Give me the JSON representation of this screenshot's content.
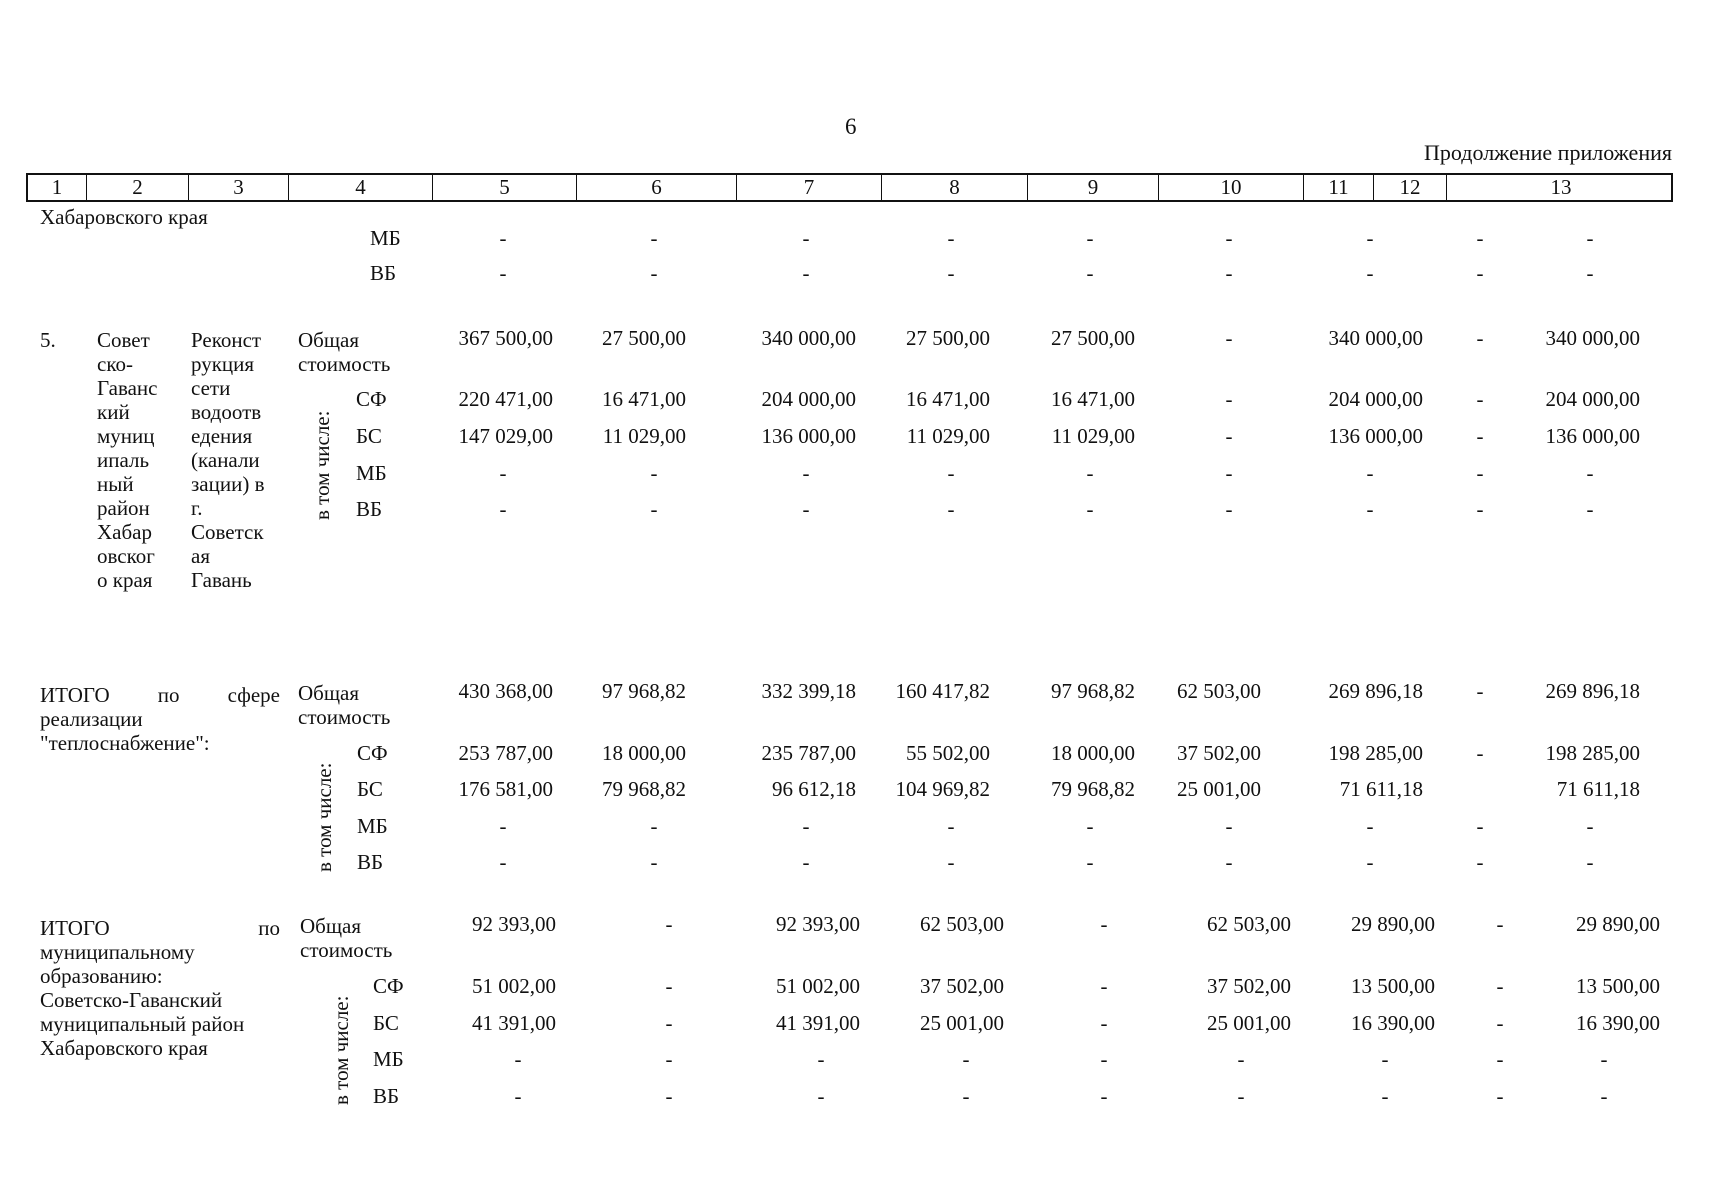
{
  "page_number": "6",
  "continuation": "Продолжение приложения",
  "header_columns": [
    "1",
    "2",
    "3",
    "4",
    "5",
    "6",
    "7",
    "8",
    "9",
    "10",
    "11",
    "12",
    "13"
  ],
  "block0": {
    "label": "Хабаровского края",
    "rows": [
      {
        "source": "МБ",
        "values": [
          "-",
          "-",
          "-",
          "-",
          "-",
          "-",
          "-",
          "-",
          "-"
        ]
      },
      {
        "source": "ВБ",
        "values": [
          "-",
          "-",
          "-",
          "-",
          "-",
          "-",
          "-",
          "-",
          "-"
        ]
      }
    ]
  },
  "block1": {
    "num": "5.",
    "col2": "Совет\nско-\nГаванс\nкий\nмуниц\nипаль\nный\nрайон\nХабар\nовског\nо края",
    "col3": "Реконст\nрукция\nсети\nводоотв\nедения\n(канали\nзации) в\nг.\nСоветск\nая\nГавань",
    "total_label": "Общая\nстоимость",
    "incl_label": "в том числе:",
    "total_values": [
      "367 500,00",
      "27 500,00",
      "340 000,00",
      "27 500,00",
      "27 500,00",
      "-",
      "340 000,00",
      "-",
      "340 000,00"
    ],
    "rows": [
      {
        "source": "СФ",
        "values": [
          "220 471,00",
          "16 471,00",
          "204 000,00",
          "16 471,00",
          "16 471,00",
          "-",
          "204 000,00",
          "-",
          "204 000,00"
        ]
      },
      {
        "source": "БС",
        "values": [
          "147 029,00",
          "11 029,00",
          "136 000,00",
          "11 029,00",
          "11 029,00",
          "-",
          "136 000,00",
          "-",
          "136 000,00"
        ]
      },
      {
        "source": "МБ",
        "values": [
          "-",
          "-",
          "-",
          "-",
          "-",
          "-",
          "-",
          "-",
          "-"
        ]
      },
      {
        "source": "ВБ",
        "values": [
          "-",
          "-",
          "-",
          "-",
          "-",
          "-",
          "-",
          "-",
          "-"
        ]
      }
    ]
  },
  "block2": {
    "label_words": [
      "ИТОГО",
      "по",
      "сфере"
    ],
    "label_rest": "реализации\n\"теплоснабжение\":",
    "total_label": "Общая\nстоимость",
    "incl_label": "в том числе:",
    "total_values": [
      "430 368,00",
      "97 968,82",
      "332 399,18",
      "160 417,82",
      "97 968,82",
      "62 503,00",
      "269 896,18",
      "-",
      "269 896,18"
    ],
    "rows": [
      {
        "source": "СФ",
        "values": [
          "253 787,00",
          "18 000,00",
          "235 787,00",
          "55 502,00",
          "18 000,00",
          "37 502,00",
          "198 285,00",
          "-",
          "198 285,00"
        ]
      },
      {
        "source": "БС",
        "values": [
          "176 581,00",
          "79 968,82",
          "96 612,18",
          "104 969,82",
          "79 968,82",
          "25 001,00",
          "71 611,18",
          "",
          "71 611,18"
        ]
      },
      {
        "source": "МБ",
        "values": [
          "-",
          "-",
          "-",
          "-",
          "-",
          "-",
          "-",
          "-",
          "-"
        ]
      },
      {
        "source": "ВБ",
        "values": [
          "-",
          "-",
          "-",
          "-",
          "-",
          "-",
          "-",
          "-",
          "-"
        ]
      }
    ]
  },
  "block3": {
    "label_words": [
      "ИТОГО",
      "по"
    ],
    "label_rest": "муниципальному\nобразованию:\nСоветско-Гаванский\nмуниципальный район\nХабаровского края",
    "total_label": "Общая\nстоимость",
    "incl_label": "в том числе:",
    "total_values": [
      "92 393,00",
      "-",
      "92 393,00",
      "62 503,00",
      "-",
      "62 503,00",
      "29 890,00",
      "-",
      "29 890,00"
    ],
    "rows": [
      {
        "source": "СФ",
        "values": [
          "51 002,00",
          "-",
          "51 002,00",
          "37 502,00",
          "-",
          "37 502,00",
          "13 500,00",
          "-",
          "13 500,00"
        ]
      },
      {
        "source": "БС",
        "values": [
          "41 391,00",
          "-",
          "41 391,00",
          "25 001,00",
          "-",
          "25 001,00",
          "16 390,00",
          "-",
          "16 390,00"
        ]
      },
      {
        "source": "МБ",
        "values": [
          "-",
          "-",
          "-",
          "-",
          "-",
          "-",
          "-",
          "-",
          "-"
        ]
      },
      {
        "source": "ВБ",
        "values": [
          "-",
          "-",
          "-",
          "-",
          "-",
          "-",
          "-",
          "-",
          "-"
        ]
      }
    ]
  }
}
